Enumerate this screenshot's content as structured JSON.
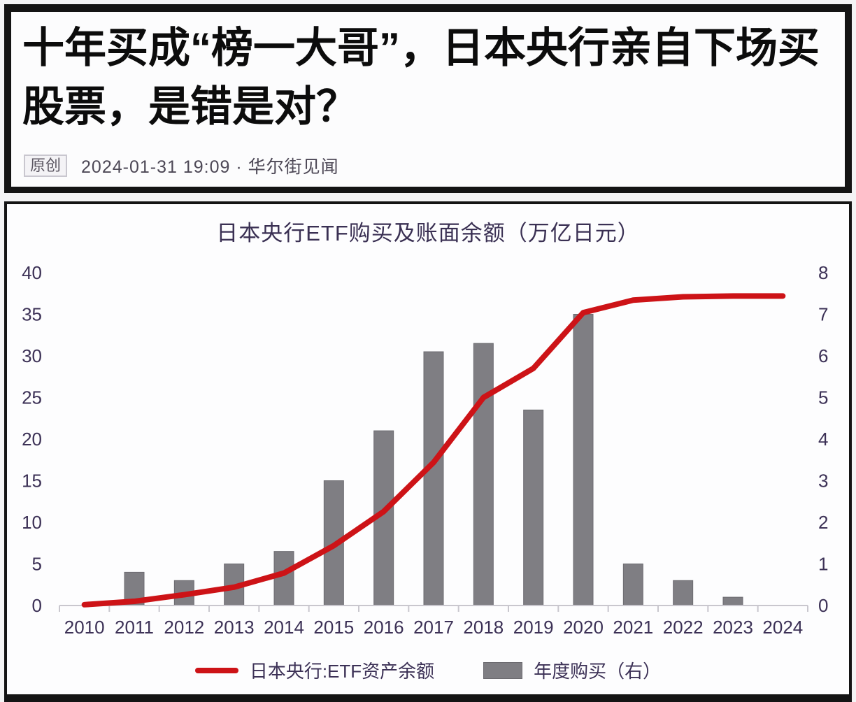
{
  "header": {
    "title": "十年买成“榜一大哥”，日本央行亲自下场买股票，是错是对？",
    "badge": "原创",
    "meta": "2024-01-31 19:09 · 华尔街见闻"
  },
  "chart_data": {
    "type": "bar",
    "subtype": "combo-bar-line",
    "title": "日本央行ETF购买及账面余额（万亿日元）",
    "categories": [
      "2010",
      "2011",
      "2012",
      "2013",
      "2014",
      "2015",
      "2016",
      "2017",
      "2018",
      "2019",
      "2020",
      "2021",
      "2022",
      "2023",
      "2024"
    ],
    "series": [
      {
        "name": "日本央行:ETF资产余额",
        "type": "line",
        "axis": "left",
        "color": "#cd1317",
        "values": [
          0.1,
          0.5,
          1.3,
          2.2,
          3.9,
          7.2,
          11.3,
          17.2,
          25.0,
          28.5,
          35.2,
          36.7,
          37.1,
          37.2,
          37.2
        ]
      },
      {
        "name": "年度购买（右）",
        "type": "bar",
        "axis": "right",
        "color": "#7f7e83",
        "border_color": "#6c6b70",
        "values": [
          0,
          0.8,
          0.6,
          1.0,
          1.3,
          3.0,
          4.2,
          6.1,
          6.3,
          4.7,
          7.0,
          1.0,
          0.6,
          0.2,
          0
        ]
      }
    ],
    "left_axis": {
      "min": 0,
      "max": 40,
      "ticks": [
        0,
        5,
        10,
        15,
        20,
        25,
        30,
        35,
        40
      ]
    },
    "right_axis": {
      "min": 0,
      "max": 8,
      "ticks": [
        0,
        1,
        2,
        3,
        4,
        5,
        6,
        7,
        8
      ]
    },
    "grid": false,
    "legend_position": "bottom",
    "label_color": "#3c3156",
    "axis_line_color": "#c9c7ce"
  }
}
